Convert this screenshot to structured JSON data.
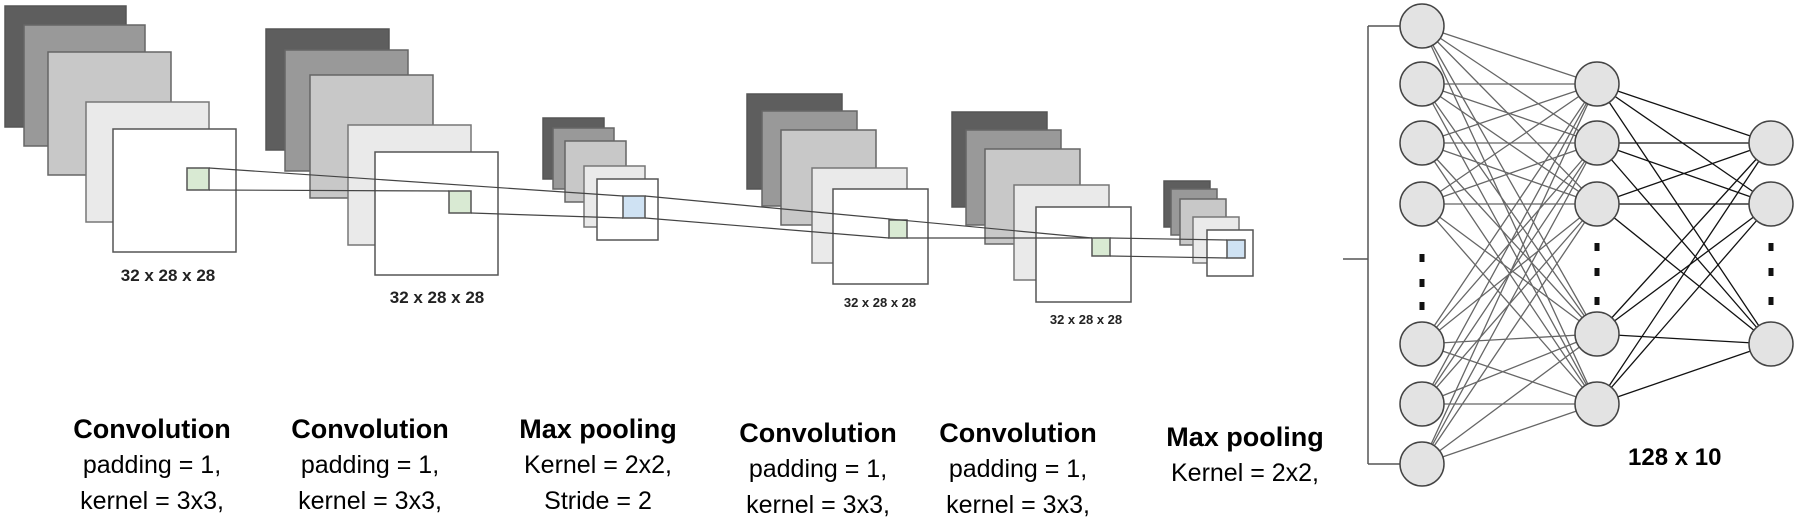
{
  "feature_map_labels": [
    "32 x 28 x 28",
    "32 x 28 x 28",
    "32 x 28 x 28",
    "32 x 28 x 28"
  ],
  "captions": [
    {
      "title": "Convolution",
      "lines": [
        "padding = 1,",
        "kernel = 3x3,"
      ]
    },
    {
      "title": "Convolution",
      "lines": [
        "padding = 1,",
        "kernel = 3x3,"
      ]
    },
    {
      "title": "Max pooling",
      "lines": [
        "Kernel = 2x2,",
        "Stride = 2"
      ]
    },
    {
      "title": "Convolution",
      "lines": [
        "padding = 1,",
        "kernel = 3x3,"
      ]
    },
    {
      "title": "Convolution",
      "lines": [
        "padding = 1,",
        "kernel = 3x3,"
      ]
    },
    {
      "title": "Max pooling",
      "lines": [
        "Kernel = 2x2,"
      ]
    }
  ],
  "fc_label": "128 x 10",
  "layer_colors": [
    "#5e5e5e",
    "#999999",
    "#c8c8c8",
    "#eaeaea",
    "#ffffff"
  ],
  "kernel_colors": {
    "conv": "#d9ead3",
    "pool": "#cfe2f3"
  }
}
